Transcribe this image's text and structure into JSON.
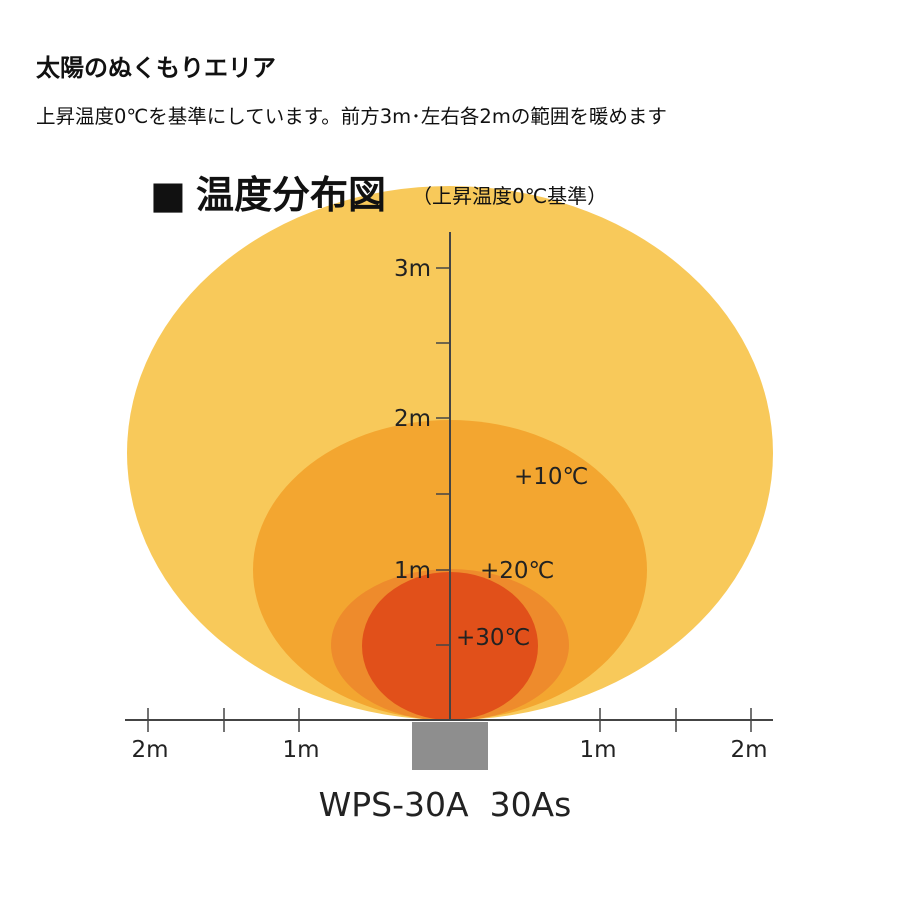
{
  "header": {
    "title": "太陽のぬくもりエリア",
    "description": "上昇温度0℃を基準にしています。前方3m･左右各2mの範囲を暖めます"
  },
  "diagram": {
    "title_marker": "■",
    "title": "温度分布図",
    "title_note": "（上昇温度0℃基準）",
    "vertical_labels": [
      "1m",
      "2m",
      "3m"
    ],
    "horizontal_labels": {
      "left": [
        "2m",
        "1m"
      ],
      "right": [
        "1m",
        "2m"
      ]
    },
    "zones": [
      {
        "label": "+10℃",
        "color": "#F8C95A"
      },
      {
        "label": "+20℃",
        "color": "#F3A630"
      },
      {
        "label": "+30℃",
        "color": "#E1501A"
      }
    ],
    "middle_zone_color": "#EE8B2C",
    "unit_label": "WPS-30A  30As",
    "unit_color": "#8E8E8E",
    "axis_color": "#444444"
  }
}
